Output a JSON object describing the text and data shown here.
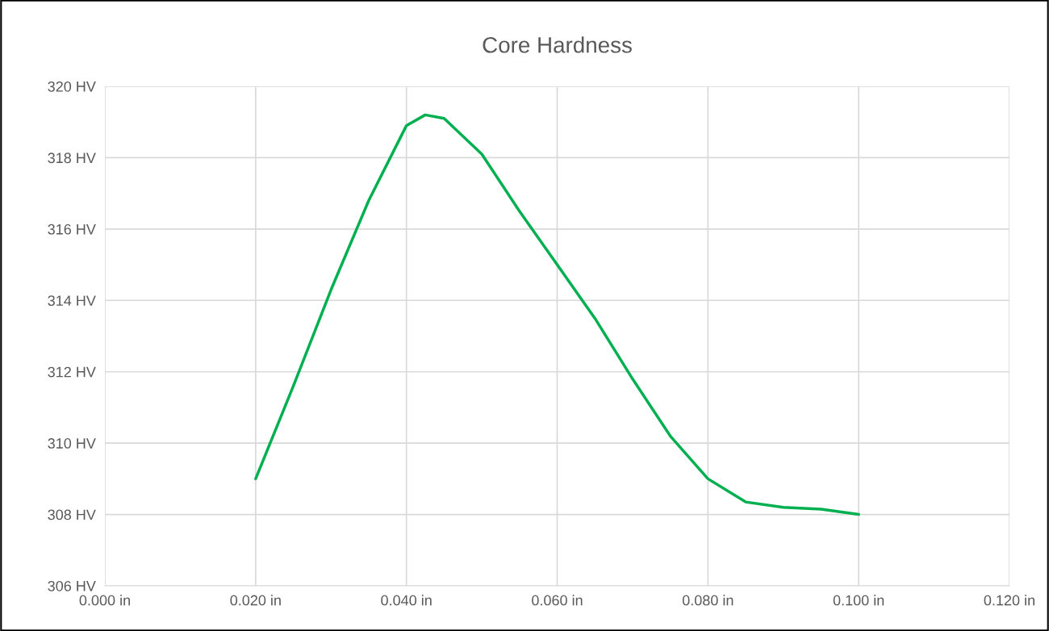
{
  "chart_data": {
    "type": "line",
    "title": "Core Hardness",
    "x": [
      0.02,
      0.025,
      0.03,
      0.035,
      0.04,
      0.0425,
      0.045,
      0.05,
      0.055,
      0.06,
      0.065,
      0.07,
      0.075,
      0.08,
      0.085,
      0.09,
      0.095,
      0.1
    ],
    "series": [
      {
        "color": "#00b050",
        "values": [
          309.0,
          311.6,
          314.3,
          316.8,
          318.9,
          319.2,
          319.1,
          318.1,
          316.5,
          315.0,
          313.5,
          311.8,
          310.2,
          309.0,
          308.35,
          308.2,
          308.15,
          308.0
        ]
      }
    ],
    "xlim": [
      0,
      0.12
    ],
    "xticks": [
      {
        "value": 0,
        "label": "0.000 in"
      },
      {
        "value": 0.02,
        "label": "0.020 in"
      },
      {
        "value": 0.04,
        "label": "0.040 in"
      },
      {
        "value": 0.06,
        "label": "0.060 in"
      },
      {
        "value": 0.08,
        "label": "0.080 in"
      },
      {
        "value": 0.1,
        "label": "0.100 in"
      },
      {
        "value": 0.12,
        "label": "0.120 in"
      }
    ],
    "ylim": [
      306,
      320
    ],
    "yticks": [
      {
        "value": 306,
        "label": "306 HV"
      },
      {
        "value": 308,
        "label": "308 HV"
      },
      {
        "value": 310,
        "label": "310 HV"
      },
      {
        "value": 312,
        "label": "312 HV"
      },
      {
        "value": 314,
        "label": "314 HV"
      },
      {
        "value": 316,
        "label": "316 HV"
      },
      {
        "value": 318,
        "label": "318 HV"
      },
      {
        "value": 320,
        "label": "320 HV"
      }
    ],
    "grid": true,
    "marker": "none",
    "line_style": "solid"
  }
}
